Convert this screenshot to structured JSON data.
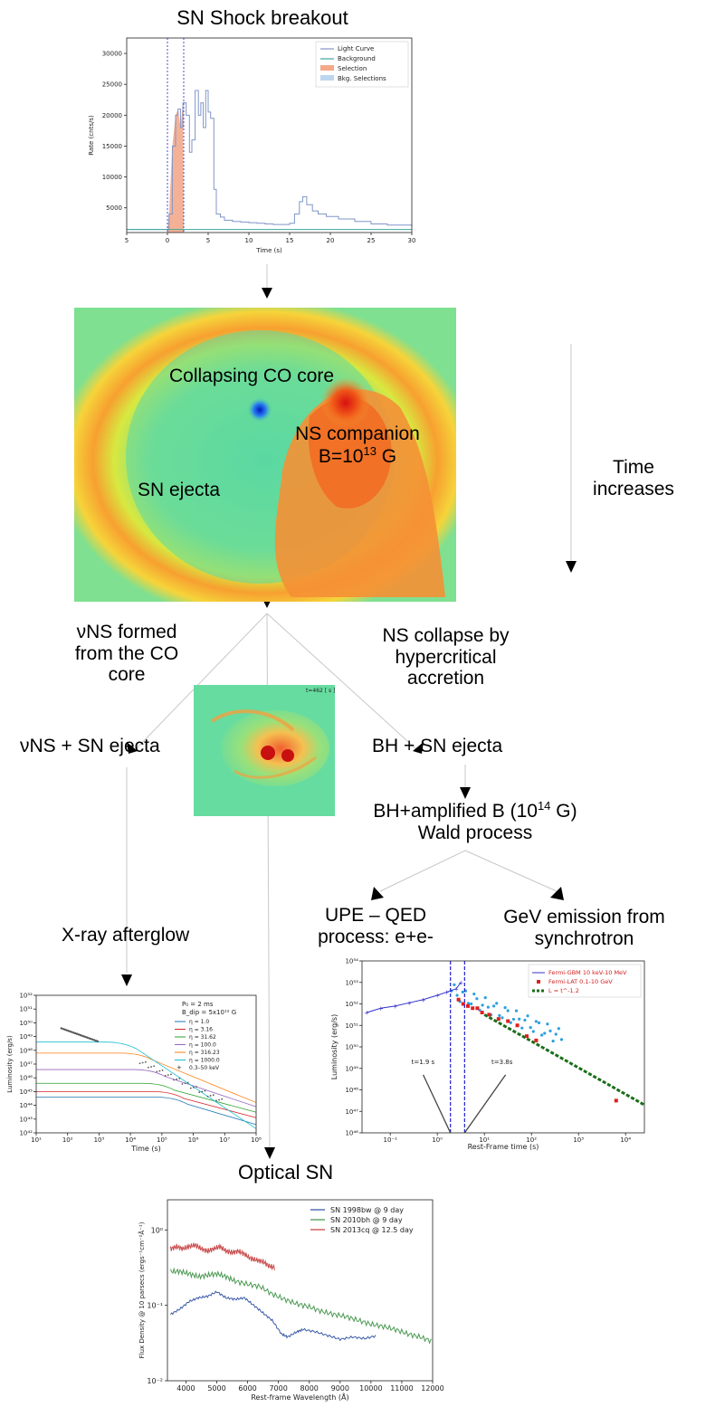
{
  "title": "SN Shock breakout",
  "nodes": {
    "collapsing_co_core": "Collapsing CO core",
    "ns_companion_line1": "NS companion",
    "ns_companion_b_prefix": "B=10",
    "ns_companion_b_exp": "13",
    "ns_companion_b_unit": " G",
    "sn_ejecta": "SN ejecta",
    "time_increases_line1": "Time",
    "time_increases_line2": "increases",
    "vns_formed_line1": "νNS formed",
    "vns_formed_line2": "from the CO",
    "vns_formed_line3": "core",
    "ns_collapse_line1": "NS collapse by",
    "ns_collapse_line2": "hypercritical",
    "ns_collapse_line3": "accretion",
    "vns_sn_ejecta": "νNS + SN ejecta",
    "bh_sn_ejecta": "BH + SN ejecta",
    "bh_amplified_prefix": "BH+amplified B (10",
    "bh_amplified_exp": "14",
    "bh_amplified_suffix": " G)",
    "wald_process": "Wald process",
    "upe_line1": "UPE – QED",
    "upe_line2": "process: e+e-",
    "gev_line1": "GeV emission from",
    "gev_line2": "synchrotron",
    "xray_afterglow": "X-ray afterglow",
    "optical_sn": "Optical SN"
  },
  "small_sim_label": "t=462 [ s ]",
  "colors": {
    "light_curve": "#8096c8",
    "background_line": "#3aa89a",
    "selection_fill": "#f4a98a",
    "bkg_selection_fill": "#bcd6ef",
    "selection_line": "#2020c0"
  },
  "chart_data": [
    {
      "type": "line",
      "ylabel": "Rate (cnts/s)",
      "xlabel": "Time (s)",
      "xlim": [
        -5,
        30
      ],
      "ylim": [
        1000,
        32500
      ],
      "x_ticks": [
        "5",
        "0",
        "5",
        "10",
        "15",
        "20",
        "25",
        "30"
      ],
      "y_ticks": [
        "5000",
        "10000",
        "15000",
        "20000",
        "25000",
        "30000"
      ],
      "legend": [
        "Light Curve",
        "Background",
        "Selection",
        "Bkg. Selections"
      ],
      "legend_position": "top-right",
      "selection_range": [
        0,
        2
      ],
      "background_level": 1500,
      "light_curve": {
        "x": [
          -5,
          -0.1,
          0.2,
          0.6,
          1.0,
          1.3,
          1.6,
          1.9,
          2.3,
          2.7,
          3.0,
          3.4,
          3.8,
          4.1,
          4.4,
          4.7,
          5.0,
          5.3,
          5.7,
          6.0,
          6.5,
          7,
          8,
          9,
          10,
          11,
          12,
          13,
          14,
          15,
          15.6,
          16.2,
          16.6,
          17.1,
          17.8,
          18.5,
          19.5,
          21,
          23,
          25,
          27,
          30
        ],
        "y": [
          1500,
          1500,
          4000,
          15000,
          20000,
          21000,
          18000,
          22000,
          20000,
          14000,
          16000,
          24000,
          20000,
          22000,
          18000,
          24000,
          20500,
          19500,
          8000,
          4000,
          3500,
          3000,
          2800,
          2700,
          2600,
          2500,
          2400,
          2300,
          2300,
          2500,
          4000,
          6000,
          6800,
          5500,
          4500,
          4000,
          3600,
          3200,
          2800,
          2400,
          2200,
          2000
        ]
      }
    },
    {
      "type": "line",
      "xlabel": "Time (s)",
      "ylabel": "Luminosity (erg/s)",
      "x_log_range": [
        1,
        8
      ],
      "y_log_range": [
        42,
        52
      ],
      "x_tick_exps": [
        1,
        2,
        3,
        4,
        5,
        6,
        7,
        8
      ],
      "y_tick_exps": [
        42,
        43,
        44,
        45,
        46,
        47,
        48,
        49,
        50,
        51,
        52
      ],
      "legend_title_1": "P₀ = 2 ms",
      "legend_title_2": "B_dip = 5x10¹² G",
      "legend_position": "top-right",
      "series": [
        {
          "name": "η = 1.0",
          "color": "#1f77b4",
          "plateau_log": 44.6,
          "break_log": 5.4,
          "end_log": 42.6
        },
        {
          "name": "η = 3.16",
          "color": "#d62728",
          "plateau_log": 45.0,
          "break_log": 5.3,
          "end_log": 43.1
        },
        {
          "name": "η = 31.62",
          "color": "#2ca02c",
          "plateau_log": 45.6,
          "break_log": 5.0,
          "end_log": 43.5
        },
        {
          "name": "η = 100.0",
          "color": "#9467bd",
          "plateau_log": 46.6,
          "break_log": 4.7,
          "end_log": 43.9
        },
        {
          "name": "η = 316.23",
          "color": "#ff7f0e",
          "plateau_log": 47.8,
          "break_log": 4.3,
          "end_log": 44.2
        },
        {
          "name": "η = 1000.0",
          "color": "#17becf",
          "plateau_log": 48.6,
          "break_log": 3.8,
          "end_log": 42.3
        }
      ],
      "data_label": "0.3–50 keV"
    },
    {
      "type": "scatter",
      "xlabel": "Rest-Frame time (s)",
      "ylabel": "Luminosity (erg/s)",
      "x_log_range": [
        -1.6,
        4.4
      ],
      "y_log_range": [
        46,
        54
      ],
      "x_tick_exps": [
        -1,
        0,
        1,
        2,
        3,
        4
      ],
      "y_tick_exps": [
        46,
        47,
        48,
        49,
        50,
        51,
        52,
        53,
        54
      ],
      "legend": [
        "Fermi-GBM 10 keV-10 MeV",
        "Fermi-LAT 0.1-10 GeV",
        "L = t^-1.2"
      ],
      "legend_position": "top-right",
      "annotations": [
        "t=1.9 s",
        "t=3.8s"
      ],
      "vertical_lines_s": [
        1.9,
        3.8
      ],
      "gbm": {
        "x_log": [
          -1.5,
          -1.2,
          -0.9,
          -0.6,
          -0.3,
          0.0,
          0.2,
          0.4,
          0.5
        ],
        "y_log": [
          51.6,
          51.8,
          51.9,
          52.05,
          52.2,
          52.4,
          52.55,
          52.7,
          53.0
        ]
      },
      "lat": {
        "x_log": [
          0.45,
          0.55,
          0.65,
          0.75,
          0.85,
          0.95,
          1.1,
          1.3,
          1.5,
          1.7,
          1.9,
          2.1,
          3.8
        ],
        "y_log": [
          52.2,
          52.0,
          51.9,
          51.8,
          51.8,
          51.6,
          51.5,
          51.3,
          51.2,
          51.0,
          50.5,
          50.3,
          47.5
        ]
      },
      "fit": {
        "x_log": [
          1.0,
          4.4
        ],
        "y_log": [
          51.5,
          47.3
        ]
      }
    },
    {
      "type": "line",
      "xlabel": "Rest-frame Wavelength (Å)",
      "ylabel": "Flux Density @ 10 parsecs (ergs⁻¹cm⁻²Å⁻¹)",
      "xlim": [
        3400,
        12000
      ],
      "y_log_range": [
        -2,
        0.4
      ],
      "x_ticks": [
        4000,
        5000,
        6000,
        7000,
        8000,
        9000,
        10000,
        11000,
        12000
      ],
      "y_ticks": [
        "10⁰",
        "10⁻¹",
        "10⁻²"
      ],
      "legend_position": "top-right",
      "series": [
        {
          "name": "SN 1998bw @ 9 day",
          "color": "#3a5ba8",
          "x": [
            3500,
            3800,
            4100,
            4400,
            4700,
            5000,
            5300,
            5600,
            5900,
            6200,
            6500,
            6800,
            7100,
            7300,
            7600,
            7800,
            8200,
            8600,
            9000,
            9400,
            9800,
            10200
          ],
          "y_log": [
            -1.12,
            -1.05,
            -0.95,
            -0.9,
            -0.88,
            -0.82,
            -0.9,
            -0.92,
            -0.9,
            -1.0,
            -1.1,
            -1.2,
            -1.38,
            -1.42,
            -1.35,
            -1.32,
            -1.35,
            -1.4,
            -1.45,
            -1.42,
            -1.44,
            -1.4
          ]
        },
        {
          "name": "SN 2010bh @ 9 day",
          "color": "#4c9a54",
          "x": [
            3500,
            3800,
            4100,
            4400,
            4700,
            5000,
            5300,
            5600,
            6000,
            6400,
            6800,
            7200,
            7600,
            8000,
            8400,
            8800,
            9200,
            9600,
            10000,
            10400,
            10800,
            11200,
            11600,
            12000
          ],
          "y_log": [
            -0.55,
            -0.55,
            -0.58,
            -0.62,
            -0.6,
            -0.58,
            -0.62,
            -0.68,
            -0.72,
            -0.75,
            -0.85,
            -0.92,
            -0.98,
            -1.02,
            -1.08,
            -1.12,
            -1.15,
            -1.2,
            -1.25,
            -1.28,
            -1.32,
            -1.38,
            -1.42,
            -1.48
          ]
        },
        {
          "name": "SN 2013cq @ 12.5 day",
          "color": "#c84848",
          "x": [
            3500,
            3700,
            3900,
            4100,
            4300,
            4500,
            4700,
            4900,
            5100,
            5300,
            5500,
            5700,
            5900,
            6100,
            6300,
            6500,
            6700,
            6900
          ],
          "y_log": [
            -0.25,
            -0.22,
            -0.25,
            -0.22,
            -0.2,
            -0.25,
            -0.28,
            -0.25,
            -0.22,
            -0.28,
            -0.3,
            -0.28,
            -0.32,
            -0.38,
            -0.4,
            -0.42,
            -0.48,
            -0.5
          ]
        }
      ]
    }
  ]
}
